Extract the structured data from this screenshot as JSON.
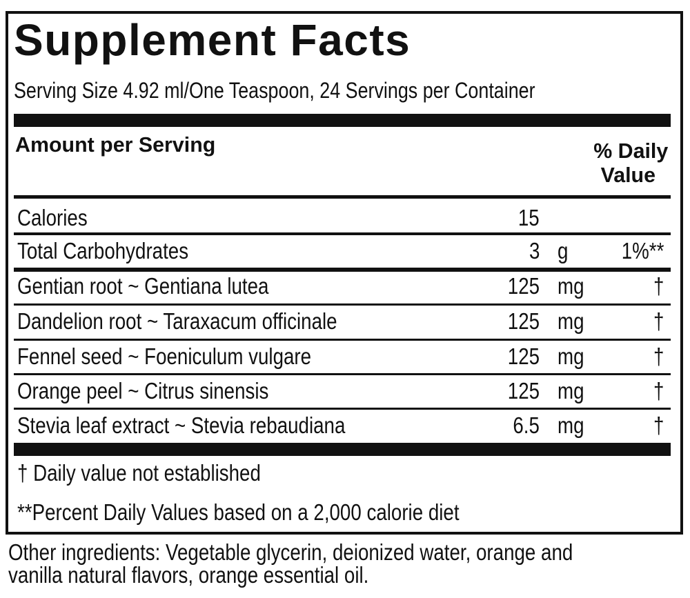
{
  "title": "Supplement Facts",
  "serving": "Serving Size 4.92 ml/One Teaspoon, 24 Servings per Container",
  "header": {
    "amount": "Amount per Serving",
    "dv_line1": "% Daily",
    "dv_line2": "Value"
  },
  "rows": [
    {
      "name": "Calories",
      "amount": "15",
      "unit": "",
      "dv": ""
    },
    {
      "name": "Total Carbohydrates",
      "amount": "3",
      "unit": "g",
      "dv": "1%**"
    },
    {
      "name": "Gentian root ~ Gentiana lutea",
      "amount": "125",
      "unit": "mg",
      "dv": "†"
    },
    {
      "name": "Dandelion root ~ Taraxacum officinale",
      "amount": "125",
      "unit": "mg",
      "dv": "†"
    },
    {
      "name": "Fennel seed ~ Foeniculum vulgare",
      "amount": "125",
      "unit": "mg",
      "dv": "†"
    },
    {
      "name": "Orange peel ~ Citrus sinensis",
      "amount": "125",
      "unit": "mg",
      "dv": "†"
    },
    {
      "name": "Stevia leaf extract ~ Stevia rebaudiana",
      "amount": "6.5",
      "unit": "mg",
      "dv": "†"
    }
  ],
  "footnotes": {
    "dagger": "†  Daily value not established",
    "percent": "**Percent Daily Values based on a 2,000 calorie diet"
  },
  "other_ingredients": {
    "line1": "Other ingredients: Vegetable glycerin, deionized water, orange and",
    "line2": "vanilla natural flavors, orange essential oil."
  }
}
